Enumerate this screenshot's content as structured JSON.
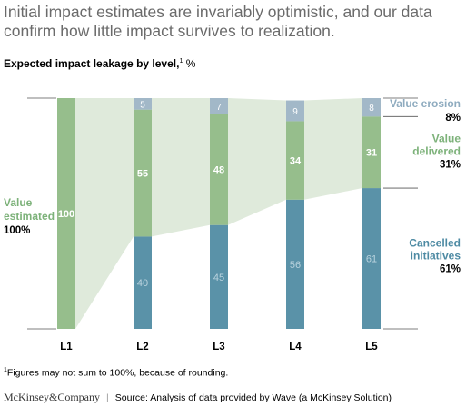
{
  "headline": "Initial impact estimates are invariably optimistic, and our data confirm how little impact survives to realization.",
  "chart_data": {
    "type": "bar",
    "stacked": true,
    "title": "Expected impact leakage by level,",
    "title_footnote_mark": "1",
    "unit": "%",
    "categories": [
      "L1",
      "L2",
      "L3",
      "L4",
      "L5"
    ],
    "series": [
      {
        "name": "Cancelled initiatives",
        "values": [
          0,
          40,
          45,
          56,
          61
        ],
        "color": "#5a92a8"
      },
      {
        "name": "Value delivered",
        "values": [
          100,
          55,
          48,
          34,
          31
        ],
        "color": "#96be8c"
      },
      {
        "name": "Value erosion",
        "values": [
          0,
          5,
          7,
          9,
          8
        ],
        "color": "#a2b8c8"
      }
    ],
    "value_estimated": {
      "label_line1": "Value",
      "label_line2": "estimated",
      "value": "100%",
      "color": "#7db27a"
    },
    "legend_right": [
      {
        "line1": "Value erosion",
        "line2": "",
        "value": "8%",
        "color": "#8eabbf"
      },
      {
        "line1": "Value",
        "line2": "delivered",
        "value": "31%",
        "color": "#7db27a"
      },
      {
        "line1": "Cancelled",
        "line2": "initiatives",
        "value": "61%",
        "color": "#4d8aa3"
      }
    ],
    "ylim": [
      0,
      100
    ],
    "grid": false
  },
  "footnote": {
    "mark": "1",
    "text": "Figures may not sum to 100%, because of rounding."
  },
  "source": {
    "brand": "McKinsey&Company",
    "separator": "|",
    "text": "Source: Analysis of data provided by Wave (a McKinsey Solution)"
  }
}
